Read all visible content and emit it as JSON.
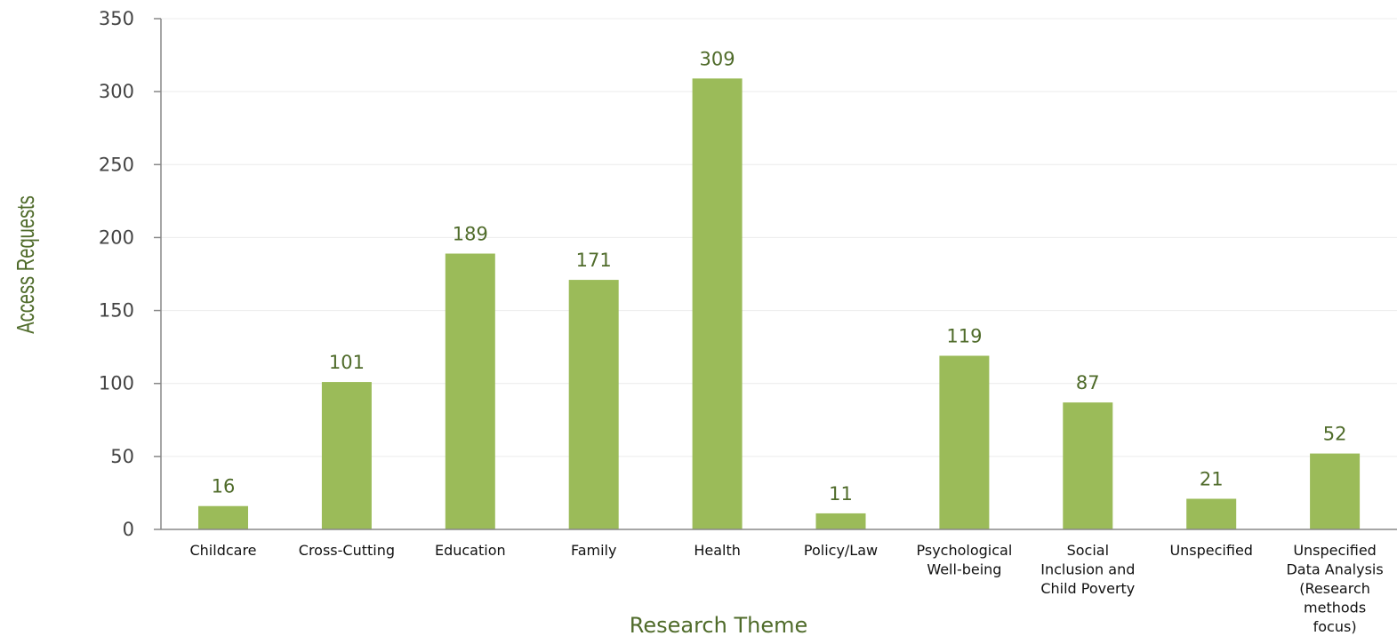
{
  "chart_data": {
    "type": "bar",
    "categories": [
      "Childcare",
      "Cross-Cutting",
      "Education",
      "Family",
      "Health",
      "Policy/Law",
      "Psychological Well-being",
      "Social Inclusion and Child Poverty",
      "Unspecified",
      "Unspecified Data Analysis (Research methods focus)"
    ],
    "category_lines": [
      [
        "Childcare"
      ],
      [
        "Cross-Cutting"
      ],
      [
        "Education"
      ],
      [
        "Family"
      ],
      [
        "Health"
      ],
      [
        "Policy/Law"
      ],
      [
        "Psychological",
        "Well-being"
      ],
      [
        "Social",
        "Inclusion and",
        "Child Poverty"
      ],
      [
        "Unspecified"
      ],
      [
        "Unspecified",
        "Data Analysis",
        "(Research",
        "methods",
        "focus)"
      ]
    ],
    "values": [
      16,
      101,
      189,
      171,
      309,
      11,
      119,
      87,
      21,
      52
    ],
    "xlabel": "Research Theme",
    "ylabel": "Access Requests",
    "ylim": [
      0,
      350
    ],
    "yticks": [
      0,
      50,
      100,
      150,
      200,
      250,
      300,
      350
    ],
    "grid": true,
    "bar_color": "#9bbb59",
    "label_color": "#4f6b2a"
  }
}
